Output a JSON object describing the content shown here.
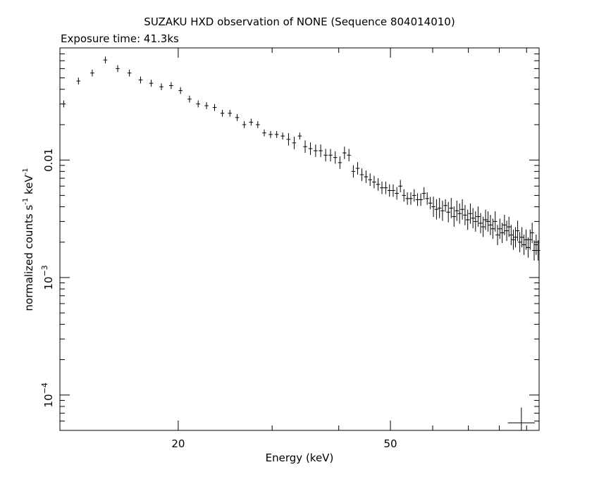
{
  "chart_data": {
    "type": "scatter",
    "title": "SUZAKU HXD observation of NONE (Sequence 804014010)",
    "subtitle": "Exposure time: 41.3ks",
    "xlabel": "Energy (keV)",
    "ylabel_main": "normalized counts s",
    "ylabel_exp1": "-1",
    "ylabel_mid": " keV",
    "ylabel_exp2": "-1",
    "x_scale": "log",
    "y_scale": "log",
    "xlim": [
      12.0,
      95.0
    ],
    "ylim": [
      5e-05,
      0.09
    ],
    "x_ticks": [
      {
        "value": 20,
        "label": "20"
      },
      {
        "value": 50,
        "label": "50"
      }
    ],
    "y_ticks": [
      {
        "value": 0.01,
        "mant": "0.01",
        "exp": ""
      },
      {
        "value": 0.001,
        "mant": "10",
        "exp": "−3"
      },
      {
        "value": 0.0001,
        "mant": "10",
        "exp": "−4"
      }
    ],
    "grid": false,
    "scale_marker": {
      "x": 88.0,
      "y": 5.8e-05
    },
    "series": [
      {
        "name": "",
        "color": "#000000",
        "points": [
          [
            12.2,
            0.03
          ],
          [
            13.0,
            0.047
          ],
          [
            13.8,
            0.055
          ],
          [
            14.6,
            0.071
          ],
          [
            15.4,
            0.06
          ],
          [
            16.2,
            0.055
          ],
          [
            17.0,
            0.048
          ],
          [
            17.8,
            0.045
          ],
          [
            18.6,
            0.042
          ],
          [
            19.4,
            0.043
          ],
          [
            20.2,
            0.039
          ],
          [
            21.0,
            0.033
          ],
          [
            21.8,
            0.03
          ],
          [
            22.6,
            0.029
          ],
          [
            23.4,
            0.028
          ],
          [
            24.2,
            0.025
          ],
          [
            25.0,
            0.025
          ],
          [
            25.8,
            0.023
          ],
          [
            26.6,
            0.02
          ],
          [
            27.4,
            0.021
          ],
          [
            28.2,
            0.02
          ],
          [
            29.0,
            0.017
          ],
          [
            29.8,
            0.0165
          ],
          [
            30.6,
            0.0165
          ],
          [
            31.4,
            0.016
          ],
          [
            32.2,
            0.015
          ],
          [
            33.0,
            0.014
          ],
          [
            33.8,
            0.016
          ],
          [
            34.6,
            0.013
          ],
          [
            35.4,
            0.0125
          ],
          [
            36.2,
            0.012
          ],
          [
            37.0,
            0.012
          ],
          [
            37.8,
            0.011
          ],
          [
            38.6,
            0.011
          ],
          [
            39.4,
            0.0105
          ],
          [
            40.2,
            0.0095
          ],
          [
            41.0,
            0.0115
          ],
          [
            41.8,
            0.011
          ],
          [
            42.6,
            0.008
          ],
          [
            43.4,
            0.0085
          ],
          [
            44.2,
            0.0075
          ],
          [
            45.0,
            0.0072
          ],
          [
            45.8,
            0.0068
          ],
          [
            46.6,
            0.0065
          ],
          [
            47.4,
            0.0062
          ],
          [
            48.2,
            0.0058
          ],
          [
            49.0,
            0.0058
          ],
          [
            49.8,
            0.0055
          ],
          [
            50.6,
            0.0055
          ],
          [
            51.4,
            0.0052
          ],
          [
            52.2,
            0.006
          ],
          [
            53.0,
            0.005
          ],
          [
            53.8,
            0.0047
          ],
          [
            54.6,
            0.0047
          ],
          [
            55.4,
            0.005
          ],
          [
            56.2,
            0.0046
          ],
          [
            57.0,
            0.0046
          ],
          [
            57.8,
            0.0052
          ],
          [
            58.6,
            0.0047
          ],
          [
            59.4,
            0.0043
          ],
          [
            60.2,
            0.004
          ],
          [
            61.0,
            0.0038
          ],
          [
            61.8,
            0.0039
          ],
          [
            62.6,
            0.0037
          ],
          [
            63.4,
            0.0041
          ],
          [
            64.2,
            0.0036
          ],
          [
            65.0,
            0.0039
          ],
          [
            65.8,
            0.0033
          ],
          [
            66.6,
            0.0037
          ],
          [
            67.4,
            0.0035
          ],
          [
            68.2,
            0.0038
          ],
          [
            69.0,
            0.0034
          ],
          [
            69.8,
            0.0031
          ],
          [
            70.6,
            0.0035
          ],
          [
            71.4,
            0.0032
          ],
          [
            72.2,
            0.003
          ],
          [
            73.0,
            0.0033
          ],
          [
            73.8,
            0.0029
          ],
          [
            74.6,
            0.0027
          ],
          [
            75.4,
            0.0031
          ],
          [
            76.2,
            0.003
          ],
          [
            77.0,
            0.0028
          ],
          [
            77.8,
            0.0026
          ],
          [
            78.6,
            0.003
          ],
          [
            79.4,
            0.0023
          ],
          [
            80.2,
            0.0026
          ],
          [
            81.0,
            0.0024
          ],
          [
            81.8,
            0.0028
          ],
          [
            82.6,
            0.0025
          ],
          [
            83.4,
            0.0027
          ],
          [
            84.2,
            0.0023
          ],
          [
            85.0,
            0.0021
          ],
          [
            85.8,
            0.0022
          ],
          [
            86.6,
            0.0025
          ],
          [
            87.4,
            0.002
          ],
          [
            88.2,
            0.0022
          ],
          [
            89.0,
            0.0019
          ],
          [
            89.8,
            0.0021
          ],
          [
            90.6,
            0.0018
          ],
          [
            91.4,
            0.0021
          ],
          [
            92.2,
            0.0024
          ],
          [
            93.0,
            0.0017
          ],
          [
            93.8,
            0.0019
          ],
          [
            94.6,
            0.0017
          ]
        ]
      }
    ]
  }
}
